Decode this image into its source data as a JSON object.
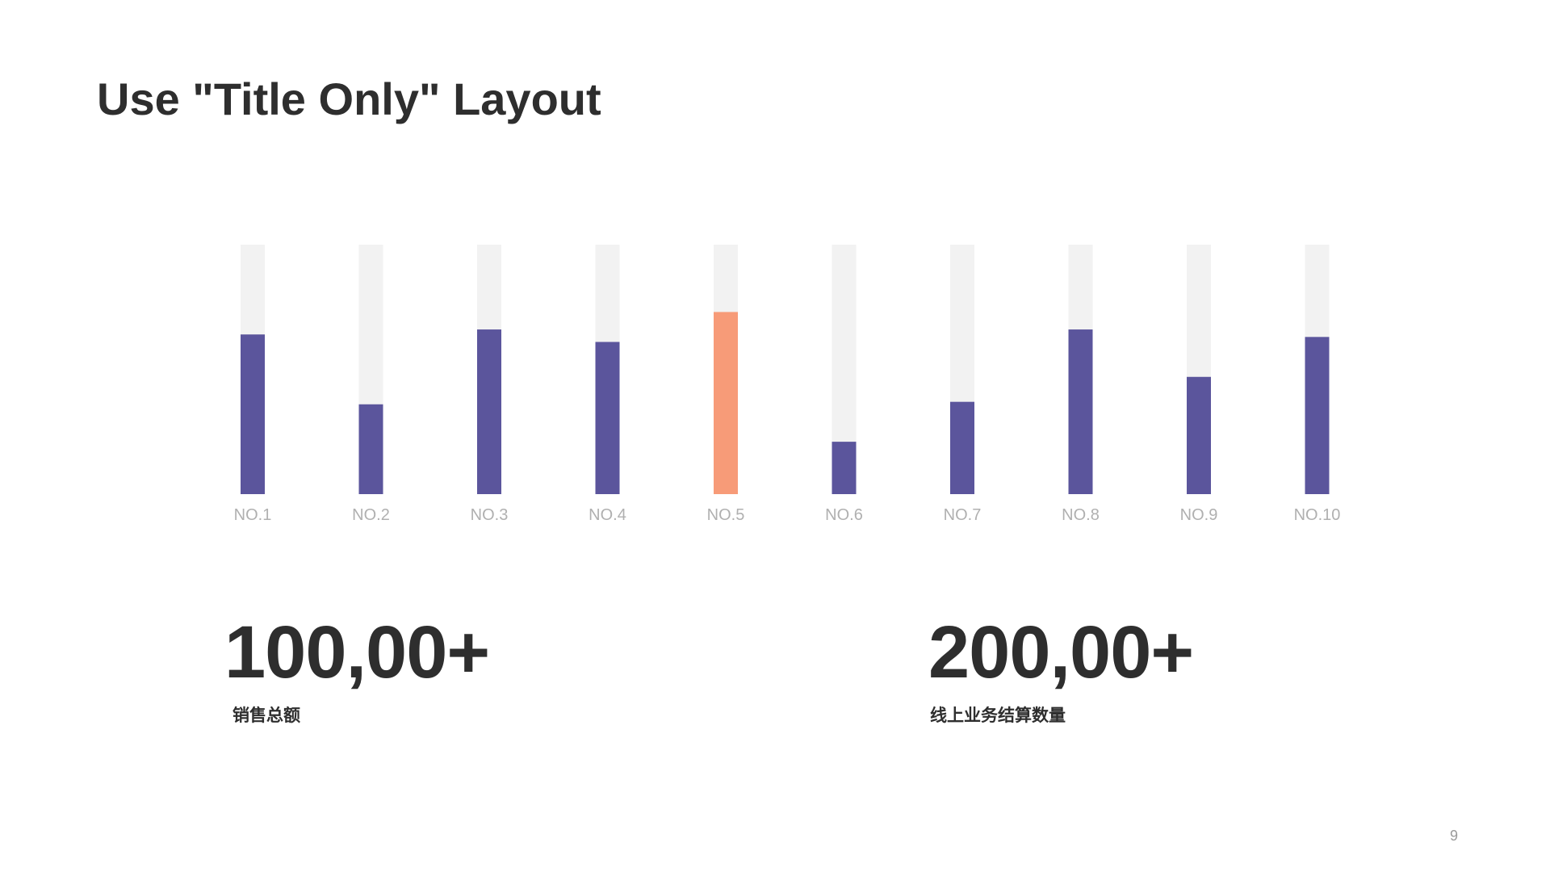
{
  "slide": {
    "title": "Use \"Title Only\" Layout",
    "page_number": "9"
  },
  "chart_data": {
    "type": "bar",
    "title": "",
    "xlabel": "",
    "ylabel": "",
    "ylim": [
      0,
      100
    ],
    "grid": false,
    "categories": [
      "NO.1",
      "NO.2",
      "NO.3",
      "NO.4",
      "NO.5",
      "NO.6",
      "NO.7",
      "NO.8",
      "NO.9",
      "NO.10"
    ],
    "values": [
      64,
      36,
      66,
      61,
      73,
      21,
      37,
      66,
      47,
      63
    ],
    "highlight_index": 4,
    "colors": {
      "bar": "#5b559c",
      "highlight": "#f79b78",
      "track": "#f2f2f2",
      "label": "#b0b0b0"
    }
  },
  "stats": [
    {
      "value": "100,00+",
      "label": "销售总额"
    },
    {
      "value": "200,00+",
      "label": "线上业务结算数量"
    }
  ]
}
